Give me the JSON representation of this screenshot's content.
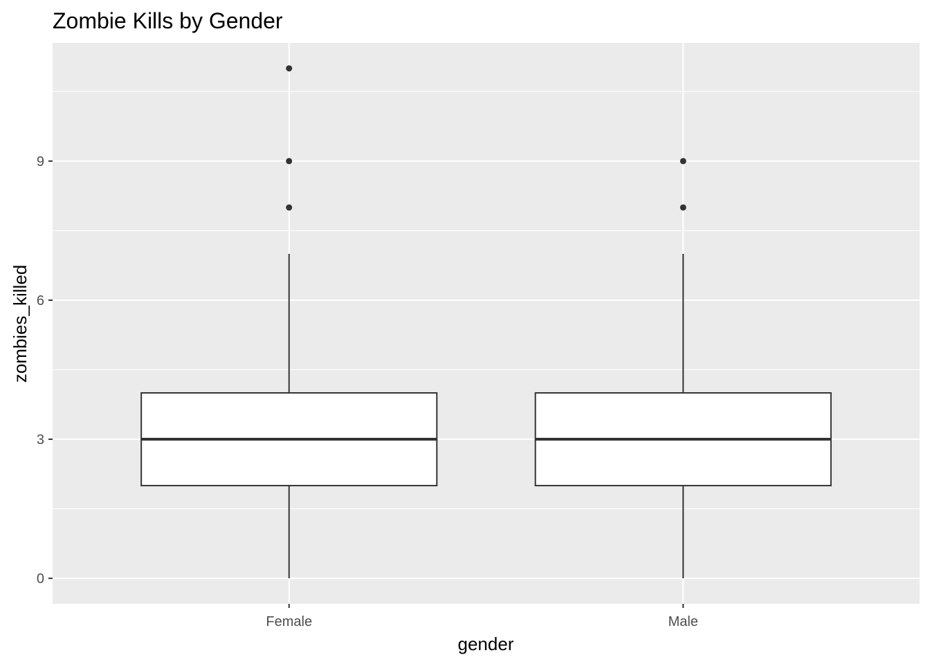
{
  "chart_data": {
    "type": "boxplot",
    "title": "Zombie Kills by Gender",
    "xlabel": "gender",
    "ylabel": "zombies_killed",
    "categories": [
      "Female",
      "Male"
    ],
    "ylim": [
      -0.55,
      11.55
    ],
    "yticks": [
      0,
      3,
      6,
      9
    ],
    "ytick_labels": [
      "0",
      "3",
      "6",
      "9"
    ],
    "grid": true,
    "boxes": [
      {
        "category": "Female",
        "whisker_low": 0,
        "q1": 2,
        "median": 3,
        "q3": 4,
        "whisker_high": 7,
        "outliers": [
          8,
          9,
          11
        ]
      },
      {
        "category": "Male",
        "whisker_low": 0,
        "q1": 2,
        "median": 3,
        "q3": 4,
        "whisker_high": 7,
        "outliers": [
          8,
          9
        ]
      }
    ],
    "colors": {
      "panel_background": "#ebebeb",
      "grid": "#ffffff",
      "box_fill": "#ffffff",
      "box_line": "#333333",
      "tick_mark": "#333333"
    }
  }
}
